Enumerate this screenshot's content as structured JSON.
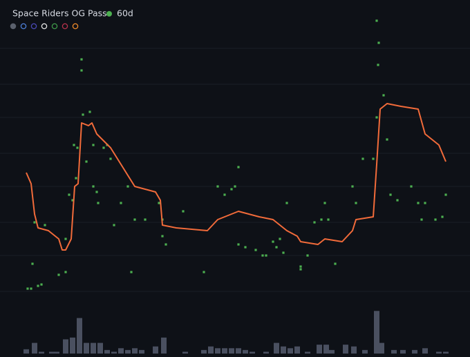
{
  "chart_data": [
    {
      "type": "scatter",
      "title": "Space Riders OG Pass",
      "grid": true,
      "xlim": [
        0,
        62
      ],
      "ylim": [
        0,
        100
      ],
      "yticks": [
        2,
        15,
        27,
        40,
        52,
        65,
        77,
        90
      ],
      "series": [
        {
          "name": "60d",
          "color": "#4caf50",
          "x": [
            0.5,
            1,
            1.2,
            2,
            2.5,
            1.5,
            3,
            5,
            6,
            6,
            6.5,
            7.5,
            7,
            7.7,
            7.2,
            8.3,
            8.3,
            8.5,
            9,
            9.5,
            10,
            10.5,
            10.7,
            10,
            11.5,
            12,
            12.5,
            13,
            14,
            15,
            15.5,
            16,
            17.5,
            19.5,
            20,
            20,
            20.5,
            23,
            26,
            28,
            29,
            30,
            30.5,
            31,
            31,
            32,
            33.5,
            34.5,
            35,
            36,
            36.5,
            37,
            37.5,
            38,
            40,
            40,
            41,
            42,
            43,
            43.5,
            44,
            45,
            47.5,
            48,
            49,
            50.5,
            51,
            51.2,
            51.3,
            51,
            52,
            52.5,
            53,
            54,
            56,
            57,
            57.5,
            58,
            59.5,
            60.5,
            61
          ],
          "values": [
            3,
            3,
            12,
            4,
            4.5,
            27,
            26,
            8,
            9,
            21,
            37,
            43,
            35,
            54,
            55,
            86,
            82,
            66,
            49,
            67,
            55,
            38,
            34,
            40,
            54,
            55,
            50,
            26,
            34,
            40,
            9,
            28,
            28,
            34,
            28,
            22,
            19,
            31,
            9,
            40,
            37,
            39,
            40,
            47,
            19,
            18,
            17,
            15,
            15,
            20,
            18,
            21,
            16,
            34,
            10,
            11,
            15,
            27,
            28,
            34,
            28,
            12,
            40,
            34,
            50,
            50,
            65,
            84,
            92,
            100,
            73,
            57,
            37,
            35,
            40,
            34,
            28,
            34,
            28,
            29,
            37
          ]
        }
      ]
    },
    {
      "type": "line",
      "xlim": [
        0,
        62
      ],
      "ylim": [
        0,
        100
      ],
      "series": [
        {
          "color": "#f26b3a",
          "x": [
            0.3,
            1,
            1.5,
            2,
            3.5,
            5,
            5.5,
            6,
            6.8,
            7.3,
            7.8,
            8.3,
            9.3,
            9.8,
            10.5,
            12.5,
            14.5,
            16,
            19,
            19.7,
            20,
            22,
            26.5,
            28,
            31,
            34,
            36,
            38,
            39.5,
            40,
            42.5,
            43.5,
            46,
            47.5,
            48,
            50.5,
            51,
            51.5,
            52.5,
            54.5,
            57,
            58,
            60,
            61
          ],
          "values": [
            45,
            41,
            30,
            25,
            24,
            21,
            17,
            17,
            21,
            40,
            41,
            63,
            62,
            63,
            59,
            54,
            46,
            40,
            38,
            35,
            26,
            25,
            24,
            28,
            31,
            29,
            28,
            24,
            22,
            20,
            19,
            21,
            20,
            24,
            28,
            29,
            48,
            68,
            70,
            69,
            68,
            59,
            55,
            49
          ]
        }
      ]
    },
    {
      "type": "bar",
      "xlim": [
        0,
        62
      ],
      "ylim": [
        0,
        14
      ],
      "series": [
        {
          "color": "#4a5060",
          "x": [
            0.3,
            1.5,
            2.5,
            4,
            4.7,
            6,
            7,
            8,
            9,
            10,
            11,
            12,
            13,
            14,
            15,
            16,
            17,
            19,
            20.2,
            23.3,
            26,
            27,
            28,
            29,
            30,
            31,
            32,
            33,
            35,
            36.5,
            37.5,
            38.5,
            39.5,
            41,
            42.7,
            43.7,
            44.5,
            46.5,
            47.7,
            49.3,
            51,
            51.7,
            53.5,
            54.8,
            56.5,
            58,
            60,
            61
          ],
          "values": [
            1.2,
            3,
            0.5,
            0.5,
            0.5,
            4,
            4.5,
            10,
            3,
            3,
            3,
            1,
            0.5,
            1.5,
            1,
            1.5,
            1,
            2,
            4.5,
            0.5,
            1,
            2,
            1.5,
            1.5,
            1.5,
            1.5,
            1,
            0.5,
            0.5,
            3,
            2,
            1.5,
            2,
            0.5,
            2.5,
            2.5,
            1,
            2.5,
            2,
            1,
            12,
            3,
            1,
            1,
            1,
            1.5,
            0.5,
            0.5
          ]
        }
      ]
    }
  ]
}
